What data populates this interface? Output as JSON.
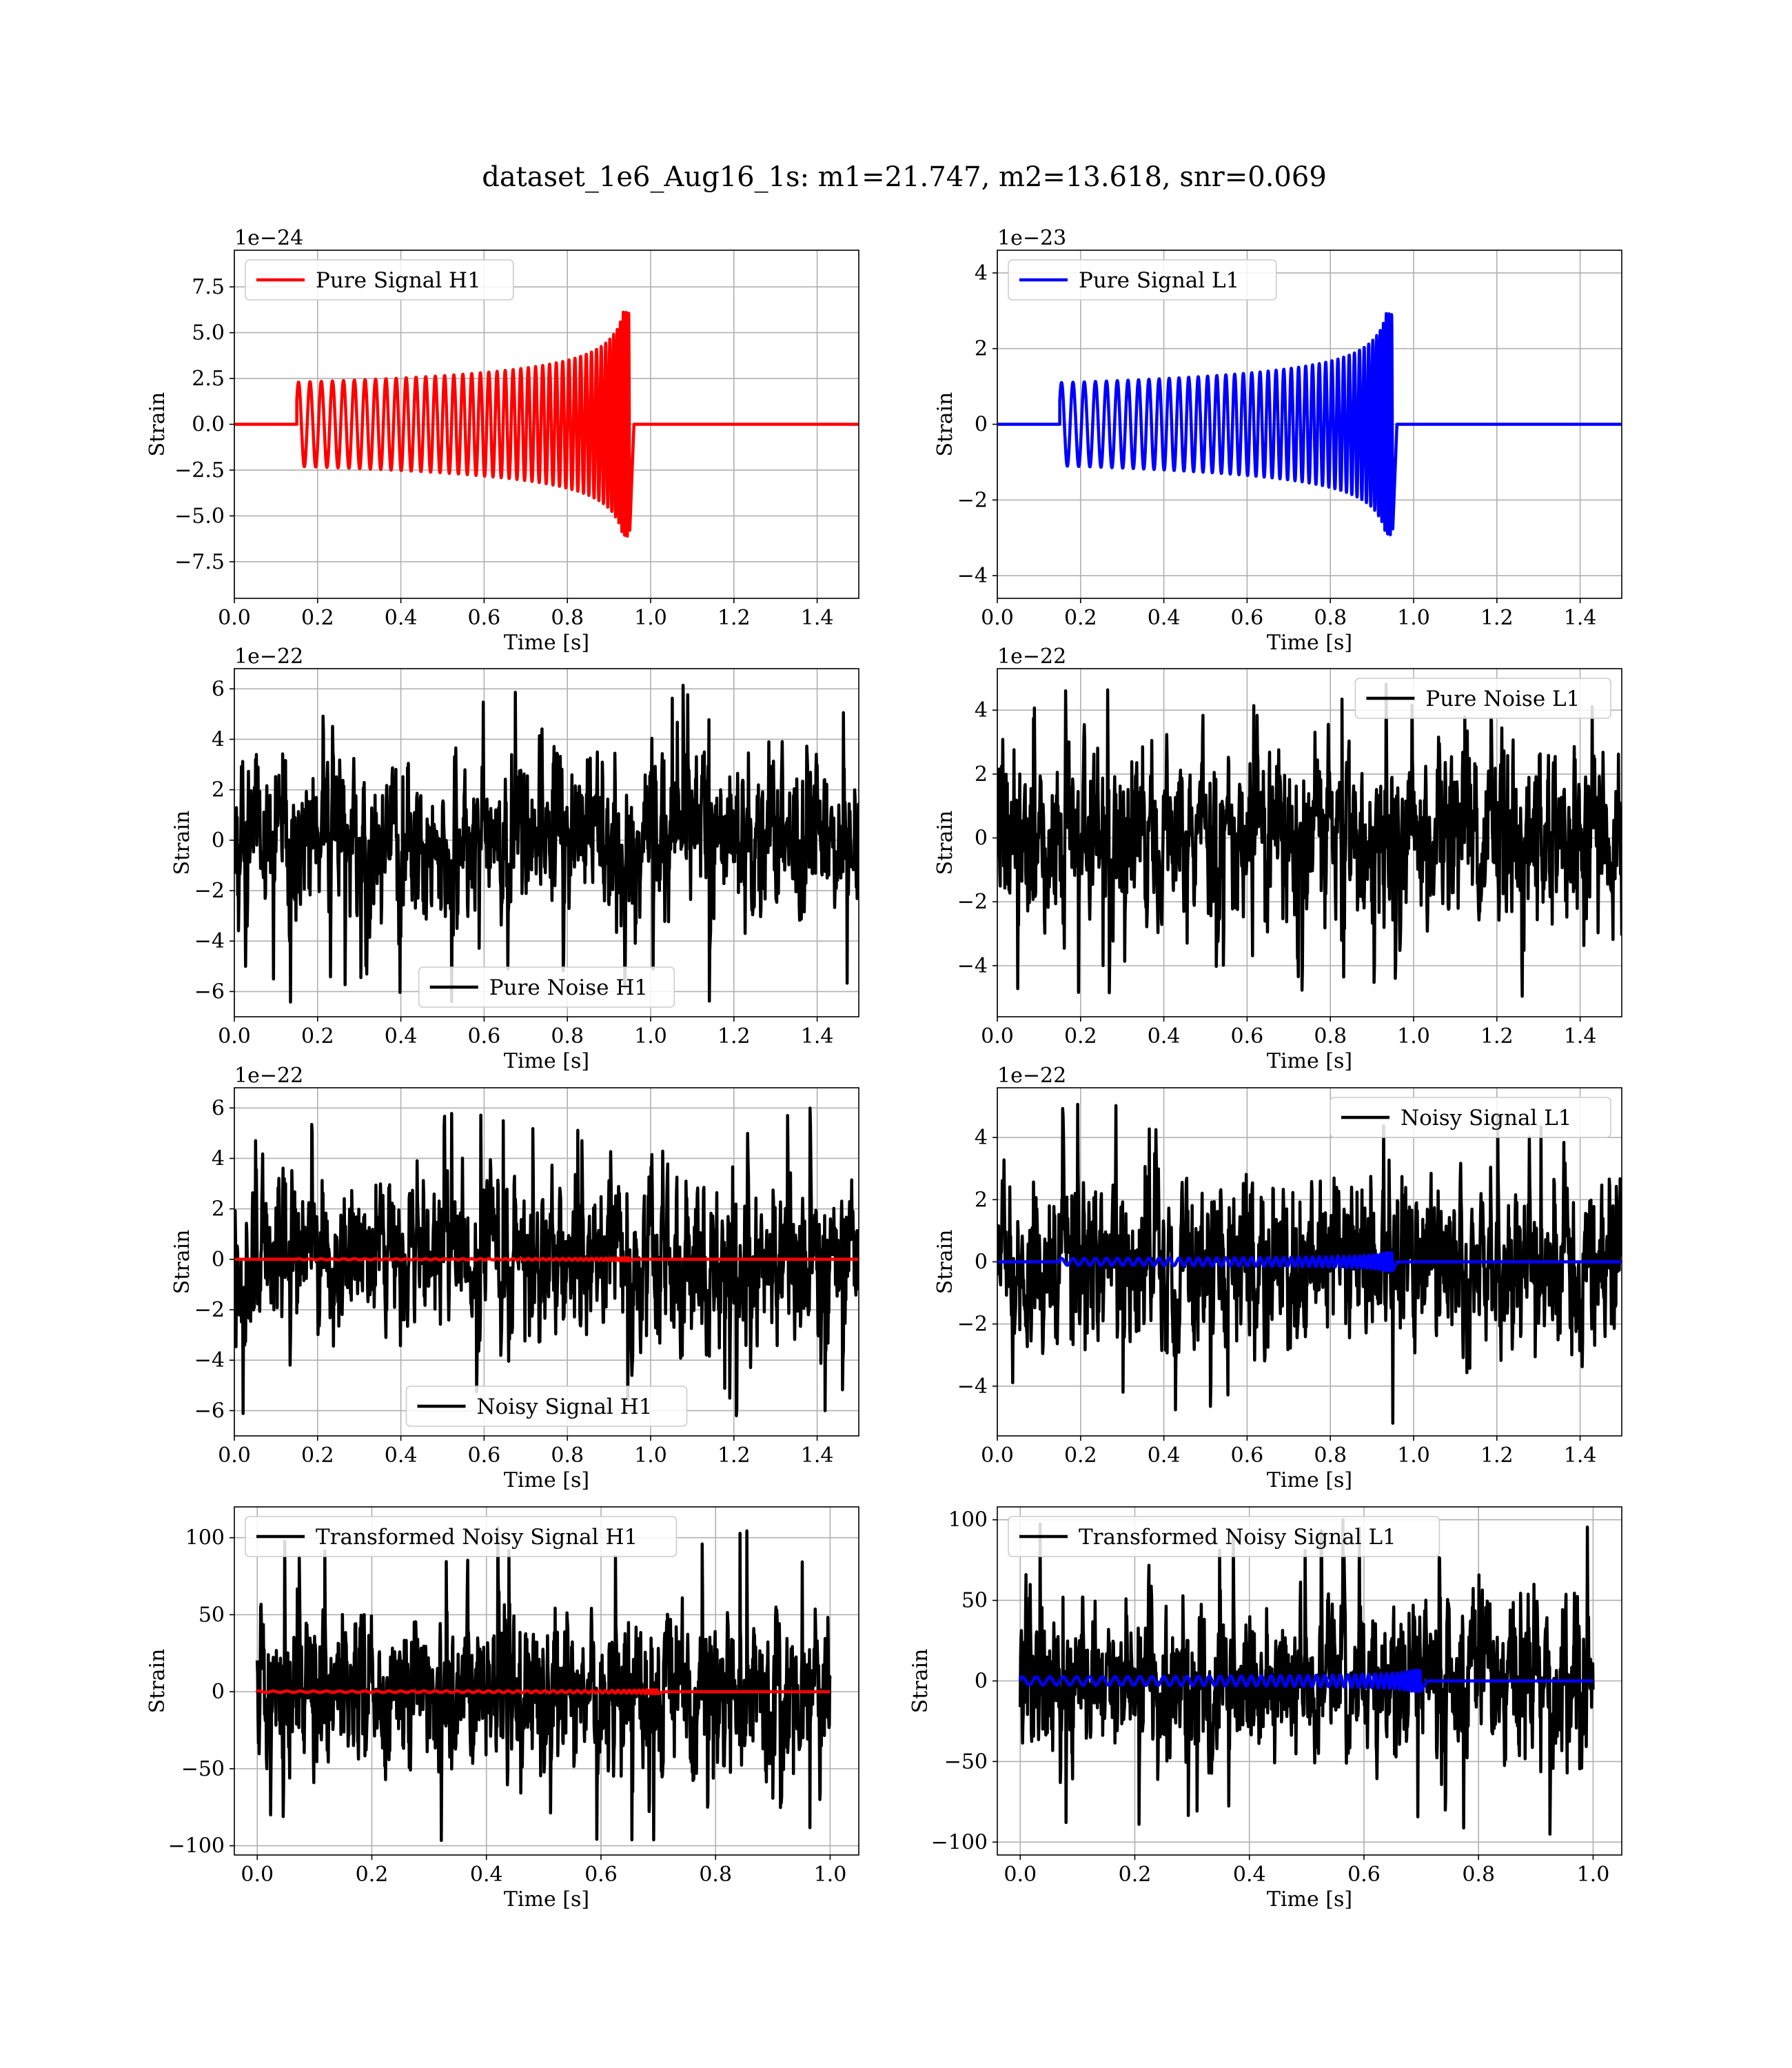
{
  "figure": {
    "suptitle": "dataset_1e6_Aug16_1s: m1=21.747, m2=13.618, snr=0.069"
  },
  "colors": {
    "h1_signal": "#ff0000",
    "l1_signal": "#0000ff",
    "noise": "#000000",
    "grid": "#b0b0b0"
  },
  "chart_data": [
    {
      "id": "pure-signal-h1",
      "type": "line",
      "xlabel": "Time [s]",
      "ylabel": "Strain",
      "offset_text": "1e−24",
      "xlim": [
        0,
        1.5
      ],
      "ylim": [
        -9.5,
        9.5
      ],
      "xticks": [
        0.0,
        0.2,
        0.4,
        0.6,
        0.8,
        1.0,
        1.2,
        1.4
      ],
      "xtick_labels": [
        "0.0",
        "0.2",
        "0.4",
        "0.6",
        "0.8",
        "1.0",
        "1.2",
        "1.4"
      ],
      "yticks": [
        -7.5,
        -5.0,
        -2.5,
        0.0,
        2.5,
        5.0,
        7.5
      ],
      "ytick_labels": [
        "−7.5",
        "−5.0",
        "−2.5",
        "0.0",
        "2.5",
        "5.0",
        "7.5"
      ],
      "grid": true,
      "legend_position": "upper left",
      "series": [
        {
          "name": "Pure Signal H1",
          "color": "#ff0000",
          "kind": "chirp",
          "x_start": 0.15,
          "x_merge": 0.95,
          "x_end": 1.5,
          "amp_start": 2.3,
          "amp_peak": 8.8,
          "cycles": 40
        }
      ]
    },
    {
      "id": "pure-signal-l1",
      "type": "line",
      "xlabel": "Time [s]",
      "ylabel": "Strain",
      "offset_text": "1e−23",
      "xlim": [
        0,
        1.5
      ],
      "ylim": [
        -4.6,
        4.6
      ],
      "xticks": [
        0.0,
        0.2,
        0.4,
        0.6,
        0.8,
        1.0,
        1.2,
        1.4
      ],
      "xtick_labels": [
        "0.0",
        "0.2",
        "0.4",
        "0.6",
        "0.8",
        "1.0",
        "1.2",
        "1.4"
      ],
      "yticks": [
        -4,
        -2,
        0,
        2,
        4
      ],
      "ytick_labels": [
        "−4",
        "−2",
        "0",
        "2",
        "4"
      ],
      "grid": true,
      "legend_position": "upper left",
      "series": [
        {
          "name": "Pure Signal L1",
          "color": "#0000ff",
          "kind": "chirp",
          "x_start": 0.15,
          "x_merge": 0.95,
          "x_end": 1.5,
          "amp_start": 1.1,
          "amp_peak": 4.1,
          "cycles": 40
        }
      ]
    },
    {
      "id": "pure-noise-h1",
      "type": "line",
      "xlabel": "Time [s]",
      "ylabel": "Strain",
      "offset_text": "1e−22",
      "xlim": [
        0,
        1.5
      ],
      "ylim": [
        -7.0,
        6.8
      ],
      "xticks": [
        0.0,
        0.2,
        0.4,
        0.6,
        0.8,
        1.0,
        1.2,
        1.4
      ],
      "xtick_labels": [
        "0.0",
        "0.2",
        "0.4",
        "0.6",
        "0.8",
        "1.0",
        "1.2",
        "1.4"
      ],
      "yticks": [
        -6,
        -4,
        -2,
        0,
        2,
        4,
        6
      ],
      "ytick_labels": [
        "−6",
        "−4",
        "−2",
        "0",
        "2",
        "4",
        "6"
      ],
      "grid": true,
      "legend_position": "lower center",
      "series": [
        {
          "name": "Pure Noise H1",
          "color": "#000000",
          "kind": "noise",
          "x_end": 1.5,
          "sigma": 1.5,
          "peak_max": 6.2,
          "peak_min": -6.5
        }
      ]
    },
    {
      "id": "pure-noise-l1",
      "type": "line",
      "xlabel": "Time [s]",
      "ylabel": "Strain",
      "offset_text": "1e−22",
      "xlim": [
        0,
        1.5
      ],
      "ylim": [
        -5.6,
        5.3
      ],
      "xticks": [
        0.0,
        0.2,
        0.4,
        0.6,
        0.8,
        1.0,
        1.2,
        1.4
      ],
      "xtick_labels": [
        "0.0",
        "0.2",
        "0.4",
        "0.6",
        "0.8",
        "1.0",
        "1.2",
        "1.4"
      ],
      "yticks": [
        -4,
        -2,
        0,
        2,
        4
      ],
      "ytick_labels": [
        "−4",
        "−2",
        "0",
        "2",
        "4"
      ],
      "grid": true,
      "legend_position": "upper right",
      "series": [
        {
          "name": "Pure Noise L1",
          "color": "#000000",
          "kind": "noise",
          "x_end": 1.5,
          "sigma": 1.3,
          "peak_max": 4.9,
          "peak_min": -5.0
        }
      ]
    },
    {
      "id": "noisy-signal-h1",
      "type": "line",
      "xlabel": "Time [s]",
      "ylabel": "Strain",
      "offset_text": "1e−22",
      "xlim": [
        0,
        1.5
      ],
      "ylim": [
        -7.0,
        6.8
      ],
      "xticks": [
        0.0,
        0.2,
        0.4,
        0.6,
        0.8,
        1.0,
        1.2,
        1.4
      ],
      "xtick_labels": [
        "0.0",
        "0.2",
        "0.4",
        "0.6",
        "0.8",
        "1.0",
        "1.2",
        "1.4"
      ],
      "yticks": [
        -6,
        -4,
        -2,
        0,
        2,
        4,
        6
      ],
      "ytick_labels": [
        "−6",
        "−4",
        "−2",
        "0",
        "2",
        "4",
        "6"
      ],
      "grid": true,
      "legend_position": "lower center",
      "series": [
        {
          "name": "Noisy Signal H1",
          "color": "#000000",
          "kind": "noise",
          "x_end": 1.5,
          "sigma": 1.5,
          "peak_max": 6.2,
          "peak_min": -6.5
        },
        {
          "color": "#ff0000",
          "kind": "chirp",
          "x_start": 0.15,
          "x_merge": 0.95,
          "x_end": 1.5,
          "amp_start": 0.023,
          "amp_peak": 0.088,
          "cycles": 40
        }
      ]
    },
    {
      "id": "noisy-signal-l1",
      "type": "line",
      "xlabel": "Time [s]",
      "ylabel": "Strain",
      "offset_text": "1e−22",
      "xlim": [
        0,
        1.5
      ],
      "ylim": [
        -5.6,
        5.6
      ],
      "xticks": [
        0.0,
        0.2,
        0.4,
        0.6,
        0.8,
        1.0,
        1.2,
        1.4
      ],
      "xtick_labels": [
        "0.0",
        "0.2",
        "0.4",
        "0.6",
        "0.8",
        "1.0",
        "1.2",
        "1.4"
      ],
      "yticks": [
        -4,
        -2,
        0,
        2,
        4
      ],
      "ytick_labels": [
        "−4",
        "−2",
        "0",
        "2",
        "4"
      ],
      "grid": true,
      "legend_position": "upper right",
      "series": [
        {
          "name": "Noisy Signal L1",
          "color": "#000000",
          "kind": "noise",
          "x_end": 1.5,
          "sigma": 1.3,
          "peak_max": 5.1,
          "peak_min": -5.2
        },
        {
          "color": "#0000ff",
          "kind": "chirp",
          "x_start": 0.15,
          "x_merge": 0.95,
          "x_end": 1.5,
          "amp_start": 0.11,
          "amp_peak": 0.41,
          "cycles": 40
        }
      ]
    },
    {
      "id": "transformed-noisy-signal-h1",
      "type": "line",
      "xlabel": "Time [s]",
      "ylabel": "Strain",
      "offset_text": "",
      "xlim": [
        -0.04,
        1.05
      ],
      "ylim": [
        -106,
        120
      ],
      "xticks": [
        0.0,
        0.2,
        0.4,
        0.6,
        0.8,
        1.0
      ],
      "xtick_labels": [
        "0.0",
        "0.2",
        "0.4",
        "0.6",
        "0.8",
        "1.0"
      ],
      "yticks": [
        -100,
        -50,
        0,
        50,
        100
      ],
      "ytick_labels": [
        "−100",
        "−50",
        "0",
        "50",
        "100"
      ],
      "grid": true,
      "legend_position": "upper left",
      "series": [
        {
          "name": "Transformed Noisy Signal H1",
          "color": "#000000",
          "kind": "noise",
          "x_end": 1.0,
          "sigma": 24,
          "peak_max": 110,
          "peak_min": -98
        },
        {
          "color": "#ff0000",
          "kind": "chirp",
          "x_start": 0.0,
          "x_merge": 0.7,
          "x_end": 1.0,
          "amp_start": 0.5,
          "amp_peak": 2.2,
          "cycles": 40
        }
      ]
    },
    {
      "id": "transformed-noisy-signal-l1",
      "type": "line",
      "xlabel": "Time [s]",
      "ylabel": "Strain",
      "offset_text": "",
      "xlim": [
        -0.04,
        1.05
      ],
      "ylim": [
        -108,
        108
      ],
      "xticks": [
        0.0,
        0.2,
        0.4,
        0.6,
        0.8,
        1.0
      ],
      "xtick_labels": [
        "0.0",
        "0.2",
        "0.4",
        "0.6",
        "0.8",
        "1.0"
      ],
      "yticks": [
        -100,
        -50,
        0,
        50,
        100
      ],
      "ytick_labels": [
        "−100",
        "−50",
        "0",
        "50",
        "100"
      ],
      "grid": true,
      "legend_position": "upper left",
      "series": [
        {
          "name": "Transformed Noisy Signal L1",
          "color": "#000000",
          "kind": "noise",
          "x_end": 1.0,
          "sigma": 22,
          "peak_max": 100,
          "peak_min": -98
        },
        {
          "color": "#0000ff",
          "kind": "chirp",
          "x_start": 0.0,
          "x_merge": 0.7,
          "x_end": 1.0,
          "amp_start": 2.5,
          "amp_peak": 11,
          "cycles": 40
        }
      ]
    }
  ]
}
